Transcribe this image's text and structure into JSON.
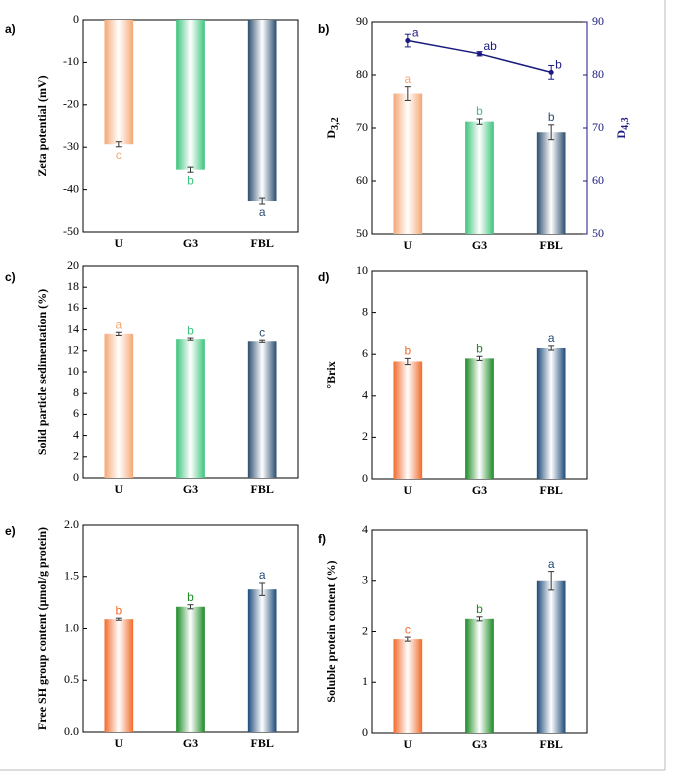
{
  "chart_data": [
    {
      "type": "bar",
      "panel_label": "a)",
      "ylabel": "Zeta potential (mV)",
      "categories": [
        "U",
        "G3",
        "FBL"
      ],
      "values": [
        -29.3,
        -35.3,
        -42.7
      ],
      "errors": [
        0.6,
        0.6,
        0.7
      ],
      "letters": [
        "c",
        "b",
        "a"
      ],
      "colors": [
        "#f4a774",
        "#3cc47c",
        "#2b4d6e"
      ],
      "ylim": [
        -50,
        0
      ],
      "yticks": [
        0,
        -10,
        -20,
        -30,
        -40,
        -50
      ]
    },
    {
      "type": "bar",
      "panel_label": "b)",
      "ylabel": "D",
      "ylabel_sub": "3,2",
      "y2label": "D",
      "y2label_sub": "4,3",
      "categories": [
        "U",
        "G3",
        "FBL"
      ],
      "values": [
        76.5,
        71.2,
        69.2
      ],
      "errors": [
        1.3,
        0.5,
        1.4
      ],
      "letters": [
        "a",
        "b",
        "b"
      ],
      "colors": [
        "#f4a774",
        "#3cc47c",
        "#2b4d6e"
      ],
      "ylim": [
        50,
        90
      ],
      "yticks": [
        50,
        60,
        70,
        80,
        90
      ],
      "line": {
        "type": "line",
        "axis": "y2",
        "values": [
          86.5,
          84,
          80.5
        ],
        "errors": [
          1.2,
          0.4,
          1.3
        ],
        "letters": [
          "a",
          "ab",
          "b"
        ],
        "color": "#1a1a80"
      },
      "y2lim": [
        50,
        90
      ],
      "y2ticks": [
        50,
        60,
        70,
        80,
        90
      ]
    },
    {
      "type": "bar",
      "panel_label": "c)",
      "ylabel": "Solid particle sedimentation (%)",
      "categories": [
        "U",
        "G3",
        "FBL"
      ],
      "values": [
        13.6,
        13.1,
        12.9
      ],
      "errors": [
        0.15,
        0.1,
        0.1
      ],
      "letters": [
        "a",
        "b",
        "c"
      ],
      "colors": [
        "#f4a774",
        "#3cc47c",
        "#2b4d6e"
      ],
      "ylim": [
        0,
        20
      ],
      "yticks": [
        0,
        2,
        4,
        6,
        8,
        10,
        12,
        14,
        16,
        18,
        20
      ]
    },
    {
      "type": "bar",
      "panel_label": "d)",
      "ylabel": "°Brix",
      "categories": [
        "U",
        "G3",
        "FBL"
      ],
      "values": [
        5.65,
        5.8,
        6.3
      ],
      "errors": [
        0.15,
        0.1,
        0.1
      ],
      "letters": [
        "b",
        "b",
        "a"
      ],
      "colors": [
        "#f26a2a",
        "#1a8a23",
        "#1d4a78"
      ],
      "ylim": [
        0,
        10
      ],
      "yticks": [
        0,
        2,
        4,
        6,
        8,
        10
      ]
    },
    {
      "type": "bar",
      "panel_label": "e)",
      "ylabel": "Free SH group content (μmol/g protein)",
      "categories": [
        "U",
        "G3",
        "FBL"
      ],
      "values": [
        1.09,
        1.21,
        1.38
      ],
      "errors": [
        0.01,
        0.02,
        0.06
      ],
      "letters": [
        "b",
        "b",
        "a"
      ],
      "colors": [
        "#f26a2a",
        "#1a8a23",
        "#1d4a78"
      ],
      "ylim": [
        0,
        2
      ],
      "yticks": [
        {
          "value": 0,
          "label": "0.0"
        },
        0.5,
        {
          "value": 1,
          "label": "1.0"
        },
        1.5,
        {
          "value": 2,
          "label": "2.0"
        }
      ]
    },
    {
      "type": "bar",
      "panel_label": "f)",
      "ylabel": "Soluble protein content (%)",
      "categories": [
        "U",
        "G3",
        "FBL"
      ],
      "values": [
        1.85,
        2.25,
        3.0
      ],
      "errors": [
        0.04,
        0.04,
        0.18
      ],
      "letters": [
        "c",
        "b",
        "a"
      ],
      "colors": [
        "#f26a2a",
        "#1a8a23",
        "#1d4a78"
      ],
      "ylim": [
        0,
        4
      ],
      "yticks": [
        0,
        1,
        2,
        3,
        4
      ]
    }
  ]
}
